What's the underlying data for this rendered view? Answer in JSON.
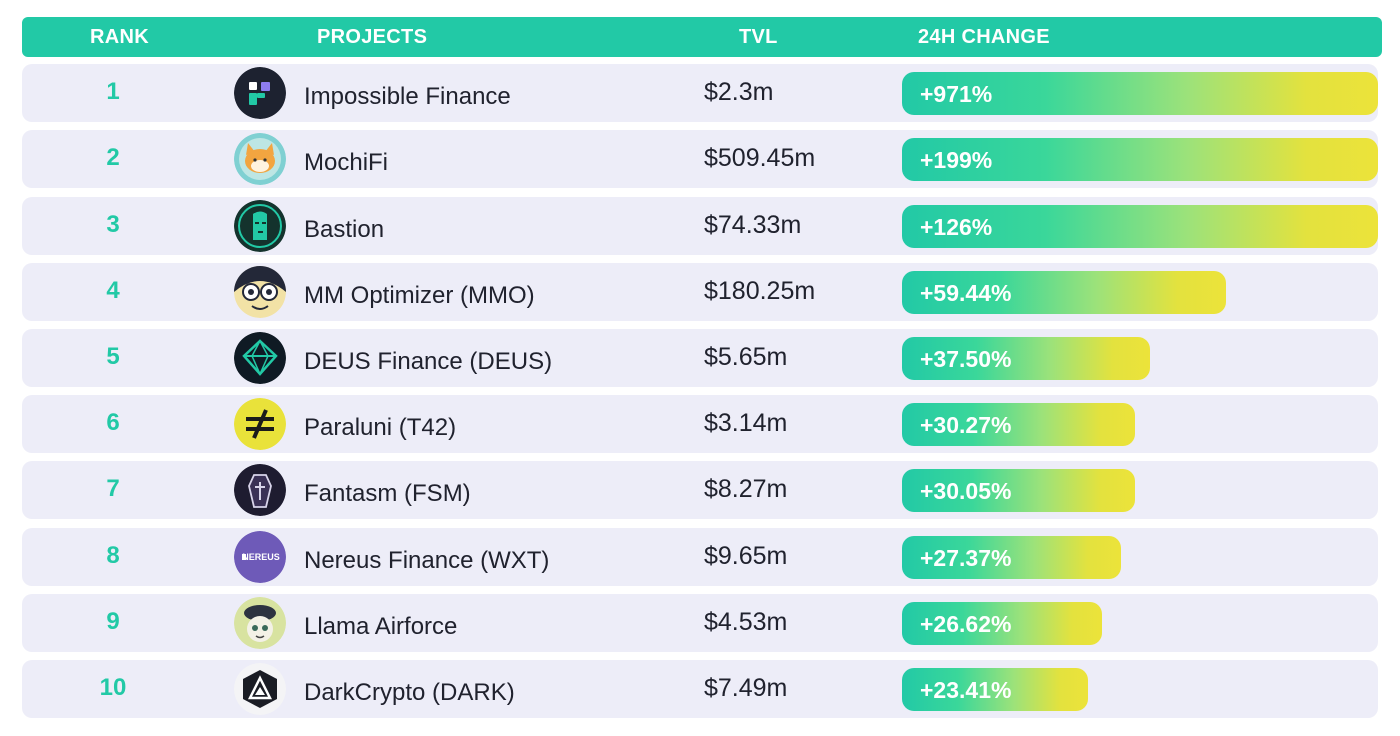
{
  "headers": {
    "rank": "RANK",
    "projects": "PROJECTS",
    "tvl": "TVL",
    "change": "24H CHANGE"
  },
  "colors": {
    "accent": "#22c9a6",
    "row_bg": "#ededf8",
    "bar_end": "#ece33a"
  },
  "rows": [
    {
      "rank": "1",
      "name": "Impossible Finance",
      "tvl": "$2.3m",
      "change": "+971%",
      "change_fill": 1.0,
      "icon": "impossible-finance-logo-icon"
    },
    {
      "rank": "2",
      "name": "MochiFi",
      "tvl": "$509.45m",
      "change": "+199%",
      "change_fill": 1.0,
      "icon": "mochifi-shiba-logo-icon"
    },
    {
      "rank": "3",
      "name": "Bastion",
      "tvl": "$74.33m",
      "change": "+126%",
      "change_fill": 1.0,
      "icon": "bastion-moai-logo-icon"
    },
    {
      "rank": "4",
      "name": "MM Optimizer (MMO)",
      "tvl": "$180.25m",
      "change": "+59.44%",
      "change_fill": 0.68,
      "icon": "mm-optimizer-logo-icon"
    },
    {
      "rank": "5",
      "name": "DEUS Finance (DEUS)",
      "tvl": "$5.65m",
      "change": "+37.50%",
      "change_fill": 0.52,
      "icon": "deus-finance-logo-icon"
    },
    {
      "rank": "6",
      "name": "Paraluni (T42)",
      "tvl": "$3.14m",
      "change": "+30.27%",
      "change_fill": 0.49,
      "icon": "paraluni-logo-icon"
    },
    {
      "rank": "7",
      "name": "Fantasm (FSM)",
      "tvl": "$8.27m",
      "change": "+30.05%",
      "change_fill": 0.49,
      "icon": "fantasm-coffin-logo-icon"
    },
    {
      "rank": "8",
      "name": "Nereus Finance (WXT)",
      "tvl": "$9.65m",
      "change": "+27.37%",
      "change_fill": 0.46,
      "icon": "nereus-finance-logo-icon"
    },
    {
      "rank": "9",
      "name": "Llama Airforce",
      "tvl": "$4.53m",
      "change": "+26.62%",
      "change_fill": 0.42,
      "icon": "llama-airforce-logo-icon"
    },
    {
      "rank": "10",
      "name": "DarkCrypto (DARK)",
      "tvl": "$7.49m",
      "change": "+23.41%",
      "change_fill": 0.39,
      "icon": "darkcrypto-logo-icon"
    }
  ],
  "logo_text": {
    "nereus": "NEREUS"
  }
}
